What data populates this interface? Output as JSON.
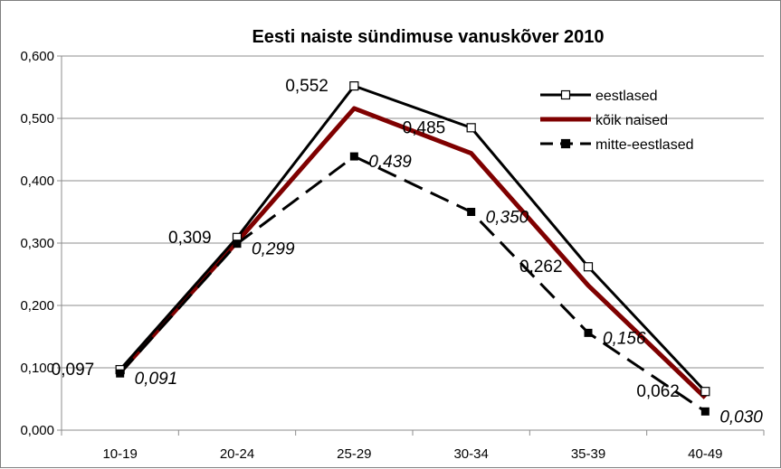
{
  "chart_data": {
    "type": "line",
    "title": "Eesti naiste sündimuse vanuskõver 2010",
    "xlabel": "",
    "ylabel": "",
    "categories": [
      "10-19",
      "20-24",
      "25-29",
      "30-34",
      "35-39",
      "40-49"
    ],
    "ylim": [
      0,
      0.6
    ],
    "yticks": [
      "0,000",
      "0,100",
      "0,200",
      "0,300",
      "0,400",
      "0,500",
      "0,600"
    ],
    "grid": true,
    "legend_position": "top-right",
    "series": [
      {
        "name": "eestlased",
        "values": [
          0.097,
          0.309,
          0.552,
          0.485,
          0.262,
          0.062
        ],
        "labels": [
          "0,097",
          "0,309",
          "0,552",
          "0,485",
          "0,262",
          "0,062"
        ],
        "color": "#000000",
        "marker": "open-square",
        "dash": "solid"
      },
      {
        "name": "kõik naised",
        "values": [
          0.093,
          0.302,
          0.516,
          0.444,
          0.232,
          0.052
        ],
        "color": "#7f0000",
        "marker": "none",
        "dash": "solid"
      },
      {
        "name": "mitte-eestlased",
        "values": [
          0.091,
          0.299,
          0.439,
          0.35,
          0.156,
          0.03
        ],
        "labels": [
          "0,091",
          "0,299",
          "0,439",
          "0,350",
          "0,156",
          "0,030"
        ],
        "color": "#000000",
        "marker": "filled-square",
        "dash": "dashed"
      }
    ]
  }
}
